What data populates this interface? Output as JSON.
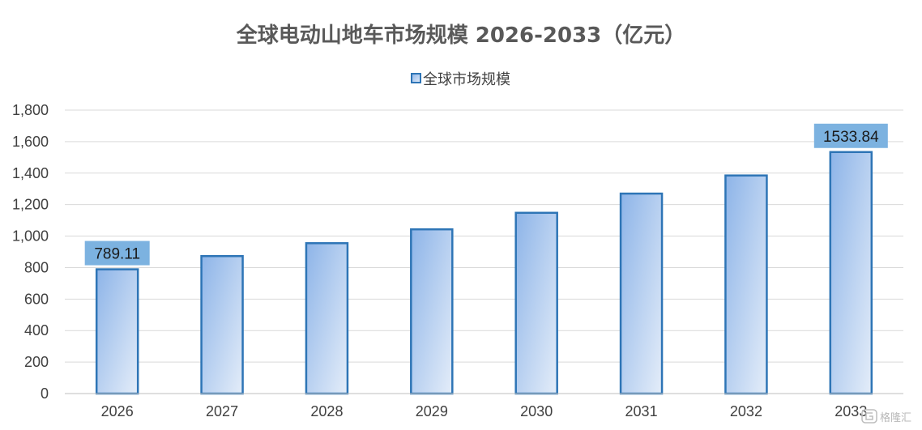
{
  "chart_data": {
    "type": "bar",
    "title": "全球电动山地车市场规模 2026-2033（亿元）",
    "xlabel": "",
    "ylabel": "",
    "categories": [
      "2026",
      "2027",
      "2028",
      "2029",
      "2030",
      "2031",
      "2032",
      "2033"
    ],
    "series": [
      {
        "name": "全球市场规模",
        "values": [
          789.11,
          873,
          955,
          1043,
          1148,
          1270,
          1385,
          1533.84
        ]
      }
    ],
    "ylim": [
      0,
      1800
    ],
    "yticks": [
      "0",
      "200",
      "400",
      "600",
      "800",
      "1,000",
      "1,200",
      "1,400",
      "1,600",
      "1,800"
    ],
    "data_labels": [
      {
        "index": 0,
        "text": "789.11"
      },
      {
        "index": 7,
        "text": "1533.84"
      }
    ],
    "grid": true,
    "legend_position": "top-center",
    "colors": {
      "bar_top": "#8db4e8",
      "bar_bottom": "#dfe9f7",
      "bar_border": "#2e75b6",
      "label_box": "#7cb2e0",
      "grid": "#d9d9d9",
      "axis": "#bfbfbf"
    }
  },
  "watermark": {
    "text": "格隆汇",
    "icon": "glh-logo-icon"
  }
}
